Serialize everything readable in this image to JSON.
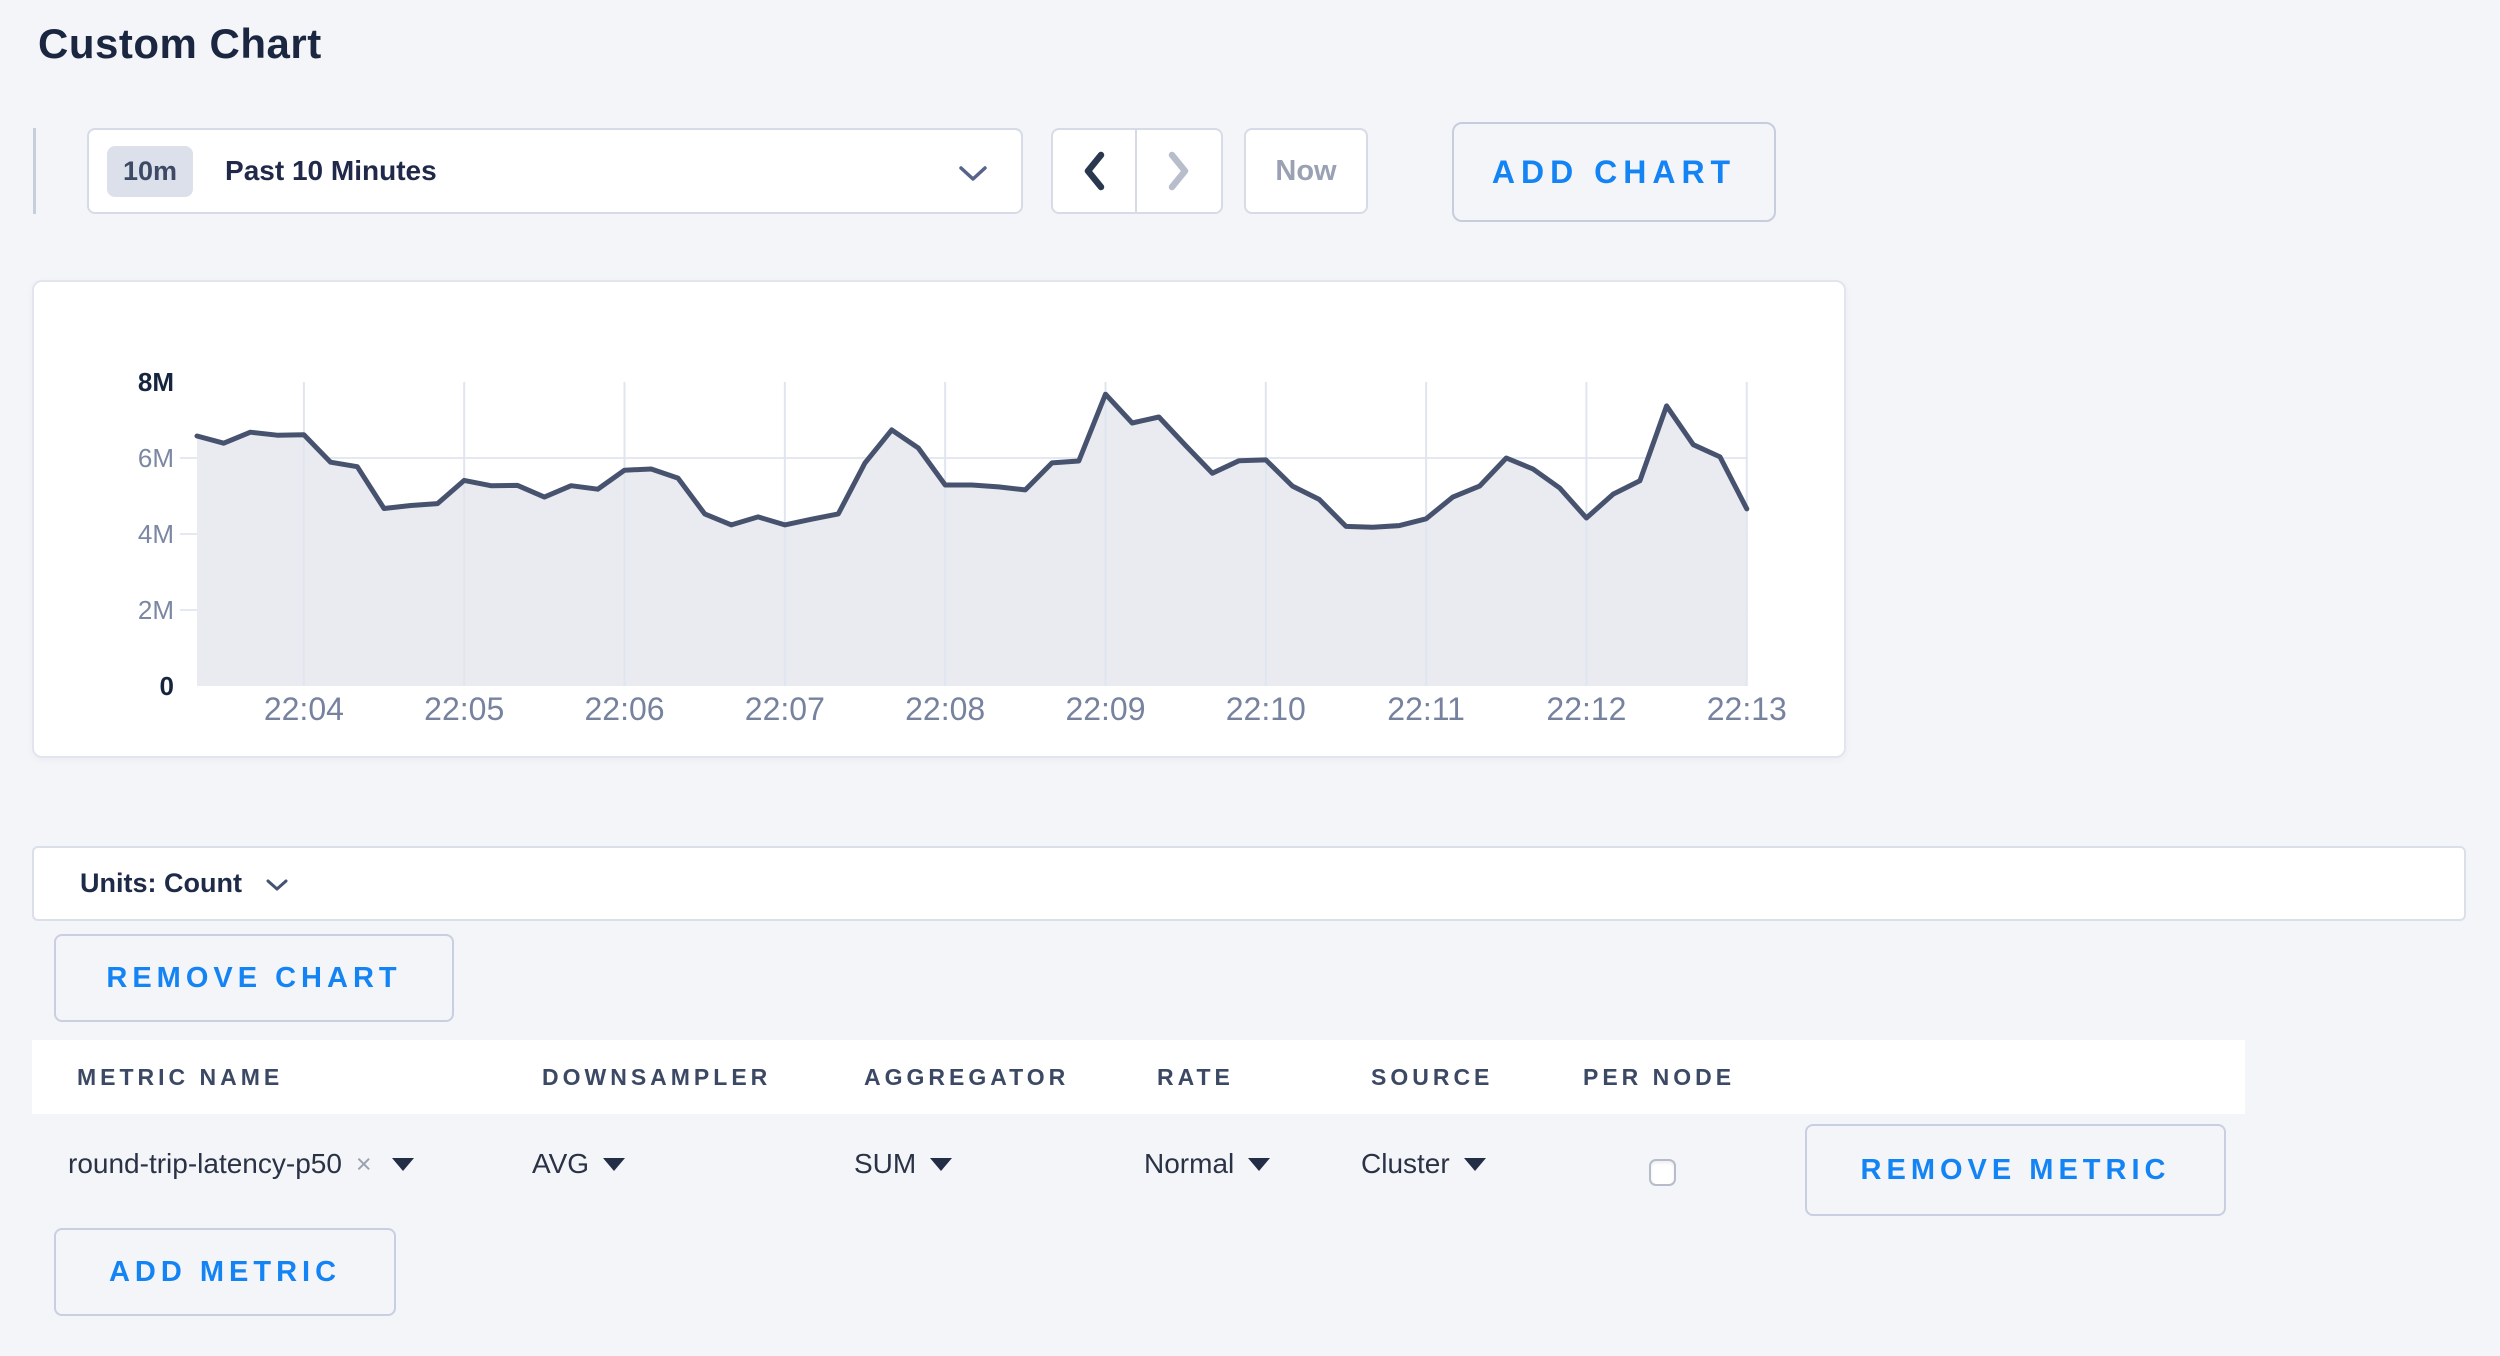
{
  "page": {
    "title": "Custom Chart"
  },
  "toolbar": {
    "time_window_badge": "10m",
    "time_window_label": "Past 10 Minutes",
    "prev_arrow": "enabled",
    "next_arrow": "disabled",
    "now_label": "Now",
    "add_chart_label": "ADD CHART"
  },
  "chart_data": {
    "type": "area",
    "title": "",
    "xlabel": "",
    "ylabel": "",
    "units": "count",
    "ylim": [
      0,
      8000000
    ],
    "ytick_values": [
      0,
      2000000,
      4000000,
      6000000,
      8000000
    ],
    "ytick_labels": [
      "0",
      "2M",
      "4M",
      "6M",
      "8M"
    ],
    "x_start_time": "22:03:20",
    "x_interval_seconds": 10,
    "xtick_labels": [
      "22:04",
      "22:05",
      "22:06",
      "22:07",
      "22:08",
      "22:09",
      "22:10",
      "22:11",
      "22:12",
      "22:13"
    ],
    "grid": true,
    "legend_position": "none",
    "line_color": "#47536e",
    "fill_color": "#e9ebf1",
    "series": [
      {
        "name": "round-trip-latency-p50",
        "values": [
          6580000,
          6390000,
          6680000,
          6600000,
          6610000,
          5890000,
          5770000,
          4670000,
          4750000,
          4800000,
          5410000,
          5270000,
          5280000,
          4970000,
          5270000,
          5180000,
          5680000,
          5710000,
          5470000,
          4530000,
          4240000,
          4450000,
          4240000,
          4390000,
          4530000,
          5870000,
          6740000,
          6260000,
          5290000,
          5290000,
          5240000,
          5160000,
          5870000,
          5920000,
          7680000,
          6920000,
          7080000,
          6330000,
          5600000,
          5930000,
          5950000,
          5260000,
          4910000,
          4200000,
          4180000,
          4220000,
          4400000,
          4970000,
          5260000,
          6000000,
          5710000,
          5210000,
          4420000,
          5050000,
          5400000,
          7370000,
          6350000,
          6030000,
          4660000
        ]
      }
    ]
  },
  "units_selector": {
    "label": "Units: Count"
  },
  "chart_actions": {
    "remove_chart_label": "REMOVE CHART"
  },
  "metrics_table": {
    "headers": [
      "METRIC NAME",
      "DOWNSAMPLER",
      "AGGREGATOR",
      "RATE",
      "SOURCE",
      "PER NODE"
    ],
    "rows": [
      {
        "metric_name": "round-trip-latency-p50",
        "clear_symbol": "×",
        "downsampler": "AVG",
        "aggregator": "SUM",
        "rate": "Normal",
        "source": "Cluster",
        "per_node_checked": false,
        "remove_label": "REMOVE METRIC"
      }
    ],
    "add_metric_label": "ADD METRIC"
  }
}
